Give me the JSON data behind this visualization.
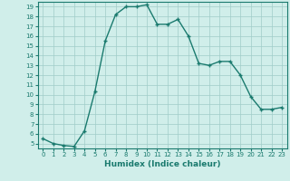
{
  "x": [
    0,
    1,
    2,
    3,
    4,
    5,
    6,
    7,
    8,
    9,
    10,
    11,
    12,
    13,
    14,
    15,
    16,
    17,
    18,
    19,
    20,
    21,
    22,
    23
  ],
  "y": [
    5.5,
    5.0,
    4.8,
    4.7,
    6.3,
    10.3,
    15.5,
    18.2,
    19.0,
    19.0,
    19.2,
    17.2,
    17.2,
    17.7,
    16.0,
    13.2,
    13.0,
    13.4,
    13.4,
    12.0,
    9.8,
    8.5,
    8.5,
    8.7
  ],
  "line_color": "#1a7a6e",
  "bg_color": "#d0eeea",
  "grid_color": "#a0ccc8",
  "xlabel": "Humidex (Indice chaleur)",
  "xlim": [
    -0.5,
    23.5
  ],
  "ylim": [
    4.5,
    19.5
  ],
  "yticks": [
    5,
    6,
    7,
    8,
    9,
    10,
    11,
    12,
    13,
    14,
    15,
    16,
    17,
    18,
    19
  ],
  "xticks": [
    0,
    1,
    2,
    3,
    4,
    5,
    6,
    7,
    8,
    9,
    10,
    11,
    12,
    13,
    14,
    15,
    16,
    17,
    18,
    19,
    20,
    21,
    22,
    23
  ],
  "marker": "+",
  "markersize": 3.5,
  "linewidth": 1.0,
  "label_fontsize": 6.5,
  "tick_fontsize": 5.0
}
